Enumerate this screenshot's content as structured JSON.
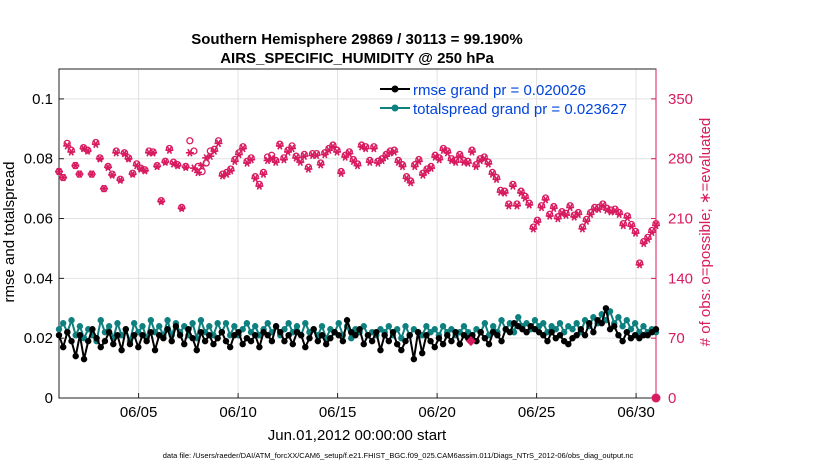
{
  "chart_data": {
    "type": "line",
    "title_line1": "Southern Hemisphere 29869 / 30113 = 99.190%",
    "title_line2": "AIRS_SPECIFIC_HUMIDITY @ 250 hPa",
    "xlabel": "Jun.01,2012 00:00:00 start",
    "ylabel_left": "rmse and totalspread",
    "ylabel_right": "# of obs: o=possible; ∗=evaluated",
    "xlim": [
      1,
      31
    ],
    "ylim_left": [
      0,
      0.11
    ],
    "ylim_right": [
      0,
      385
    ],
    "x_ticks": [
      5,
      10,
      15,
      20,
      25,
      30
    ],
    "x_tick_labels": [
      "06/05",
      "06/10",
      "06/15",
      "06/20",
      "06/25",
      "06/30"
    ],
    "y_ticks_left": [
      0,
      0.02,
      0.04,
      0.06,
      0.08,
      0.1
    ],
    "y_tick_labels_left": [
      "0",
      "0.02",
      "0.04",
      "0.06",
      "0.08",
      "0.1"
    ],
    "y_ticks_right": [
      0,
      70,
      140,
      210,
      280,
      350
    ],
    "y_tick_labels_right": [
      "0",
      "70",
      "140",
      "210",
      "280",
      "350"
    ],
    "grid": true,
    "colors": {
      "rmse": "#000000",
      "spread": "#0f8080",
      "obs": "#d81b60",
      "legend_text": "#0044dd"
    },
    "series": [
      {
        "name": "rmse grand pr = 0.020026",
        "key": "rmse",
        "values": [
          0.021,
          0.017,
          0.022,
          0.019,
          0.014,
          0.021,
          0.013,
          0.019,
          0.023,
          0.02,
          0.017,
          0.019,
          0.022,
          0.018,
          0.021,
          0.016,
          0.023,
          0.018,
          0.021,
          0.017,
          0.021,
          0.019,
          0.022,
          0.016,
          0.021,
          0.02,
          0.023,
          0.019,
          0.024,
          0.021,
          0.018,
          0.023,
          0.02,
          0.016,
          0.022,
          0.019,
          0.021,
          0.018,
          0.02,
          0.022,
          0.019,
          0.017,
          0.021,
          0.022,
          0.018,
          0.02,
          0.019,
          0.021,
          0.017,
          0.022,
          0.021,
          0.019,
          0.024,
          0.022,
          0.019,
          0.021,
          0.018,
          0.022,
          0.021,
          0.017,
          0.02,
          0.023,
          0.019,
          0.021,
          0.018,
          0.02,
          0.022,
          0.021,
          0.019,
          0.026,
          0.022,
          0.021,
          0.023,
          0.018,
          0.021,
          0.019,
          0.022,
          0.016,
          0.021,
          0.019,
          0.022,
          0.018,
          0.016,
          0.019,
          0.021,
          0.013,
          0.022,
          0.015,
          0.021,
          0.019,
          0.017,
          0.02,
          0.018,
          0.021,
          0.019,
          0.022,
          0.018,
          0.021,
          0.02,
          0.021,
          0.019,
          0.022,
          0.02,
          0.018,
          0.022,
          0.021,
          0.019,
          0.023,
          0.022,
          0.025,
          0.024,
          0.023,
          0.022,
          0.024,
          0.023,
          0.022,
          0.021,
          0.019,
          0.022,
          0.02,
          0.021,
          0.019,
          0.018,
          0.02,
          0.021,
          0.023,
          0.021,
          0.025,
          0.022,
          0.026,
          0.025,
          0.03,
          0.023,
          0.024,
          0.021,
          0.019,
          0.022,
          0.02,
          0.021,
          0.02,
          0.021,
          0.021,
          0.022,
          0.023
        ]
      },
      {
        "name": "totalspread grand pr = 0.023627",
        "key": "spread",
        "values": [
          0.023,
          0.025,
          0.022,
          0.026,
          0.021,
          0.024,
          0.02,
          0.023,
          0.021,
          0.019,
          0.026,
          0.022,
          0.024,
          0.02,
          0.025,
          0.021,
          0.023,
          0.019,
          0.025,
          0.022,
          0.024,
          0.02,
          0.026,
          0.022,
          0.024,
          0.021,
          0.026,
          0.021,
          0.025,
          0.022,
          0.024,
          0.021,
          0.025,
          0.02,
          0.026,
          0.022,
          0.024,
          0.021,
          0.025,
          0.022,
          0.025,
          0.021,
          0.024,
          0.021,
          0.023,
          0.025,
          0.022,
          0.024,
          0.021,
          0.023,
          0.025,
          0.022,
          0.024,
          0.021,
          0.023,
          0.025,
          0.022,
          0.024,
          0.021,
          0.025,
          0.022,
          0.023,
          0.021,
          0.024,
          0.02,
          0.023,
          0.022,
          0.025,
          0.021,
          0.024,
          0.02,
          0.023,
          0.022,
          0.024,
          0.021,
          0.022,
          0.021,
          0.023,
          0.022,
          0.024,
          0.021,
          0.023,
          0.02,
          0.024,
          0.021,
          0.023,
          0.022,
          0.021,
          0.024,
          0.022,
          0.023,
          0.021,
          0.024,
          0.022,
          0.023,
          0.021,
          0.022,
          0.024,
          0.022,
          0.021,
          0.023,
          0.022,
          0.025,
          0.021,
          0.024,
          0.022,
          0.026,
          0.023,
          0.025,
          0.022,
          0.027,
          0.024,
          0.025,
          0.023,
          0.026,
          0.024,
          0.025,
          0.022,
          0.024,
          0.023,
          0.025,
          0.022,
          0.024,
          0.023,
          0.025,
          0.022,
          0.026,
          0.024,
          0.027,
          0.025,
          0.028,
          0.026,
          0.029,
          0.025,
          0.027,
          0.024,
          0.026,
          0.023,
          0.025,
          0.022,
          0.024,
          0.022,
          0.023,
          0.022
        ]
      }
    ],
    "obs_evaluated": [
      265,
      258,
      295,
      288,
      272,
      262,
      292,
      289,
      262,
      297,
      280,
      245,
      270,
      261,
      287,
      255,
      286,
      280,
      262,
      272,
      268,
      266,
      287,
      287,
      271,
      230,
      276,
      290,
      274,
      272,
      222,
      270,
      287,
      269,
      264,
      272,
      281,
      283,
      289,
      298,
      260,
      262,
      266,
      277,
      285,
      292,
      275,
      279,
      257,
      248,
      262,
      278,
      280,
      276,
      295,
      279,
      288,
      292,
      281,
      276,
      283,
      268,
      284,
      284,
      273,
      285,
      290,
      294,
      288,
      263,
      282,
      286,
      277,
      272,
      294,
      292,
      276,
      292,
      275,
      278,
      283,
      287,
      288,
      276,
      271,
      257,
      252,
      271,
      277,
      261,
      266,
      269,
      282,
      279,
      290,
      287,
      278,
      276,
      283,
      276,
      275,
      288,
      271,
      278,
      280,
      274,
      262,
      256,
      241,
      240,
      225,
      248,
      225,
      240,
      234,
      226,
      198,
      206,
      223,
      232,
      213,
      222,
      210,
      216,
      214,
      223,
      212,
      215,
      198,
      207,
      215,
      221,
      221,
      225,
      220,
      218,
      219,
      215,
      202,
      211,
      201,
      193,
      156,
      181,
      186,
      194,
      202
    ],
    "obs_possible": [
      265,
      258,
      298,
      290,
      272,
      262,
      293,
      290,
      262,
      299,
      281,
      245,
      271,
      262,
      289,
      256,
      287,
      281,
      263,
      274,
      269,
      267,
      289,
      288,
      272,
      231,
      277,
      292,
      276,
      273,
      223,
      271,
      301,
      289,
      271,
      265,
      275,
      289,
      291,
      301,
      262,
      264,
      268,
      279,
      287,
      294,
      277,
      281,
      259,
      250,
      264,
      282,
      284,
      278,
      297,
      281,
      290,
      295,
      283,
      278,
      285,
      270,
      286,
      286,
      275,
      287,
      292,
      296,
      290,
      265,
      284,
      288,
      279,
      274,
      296,
      294,
      278,
      294,
      277,
      280,
      285,
      289,
      290,
      278,
      273,
      259,
      254,
      273,
      279,
      263,
      268,
      271,
      284,
      281,
      292,
      289,
      280,
      278,
      285,
      278,
      277,
      290,
      273,
      280,
      282,
      276,
      264,
      258,
      243,
      242,
      227,
      250,
      227,
      242,
      236,
      228,
      200,
      208,
      225,
      234,
      215,
      224,
      212,
      218,
      216,
      225,
      214,
      217,
      200,
      209,
      217,
      223,
      223,
      227,
      222,
      220,
      221,
      217,
      204,
      213,
      203,
      195,
      158,
      183,
      188,
      196,
      204
    ],
    "footer": "data file: /Users/raeder/DAI/ATM_forcXX/CAM6_setup/f.e21.FHIST_BGC.f09_025.CAM6assim.011/Diags_NTrS_2012-06/obs_diag_output.nc"
  }
}
